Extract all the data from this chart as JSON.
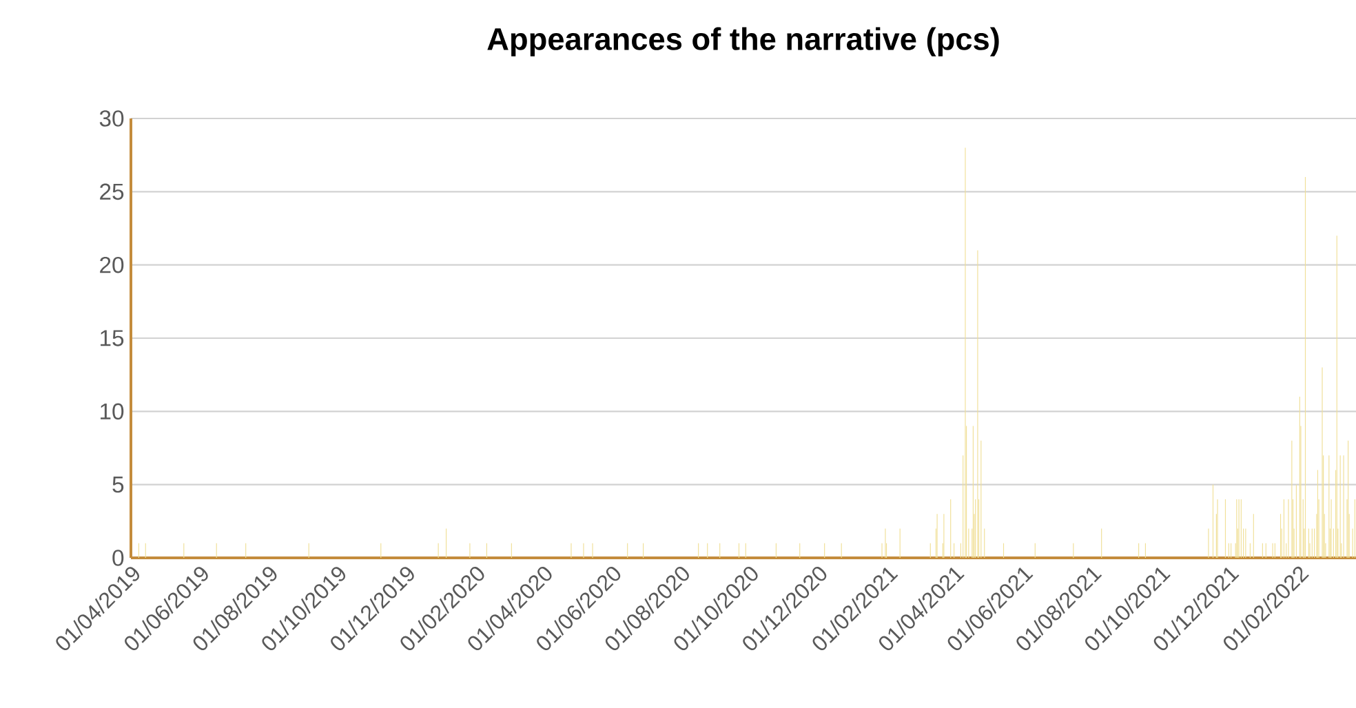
{
  "chart_data": {
    "type": "bar",
    "title": "Appearances of the narrative (pcs)",
    "x": [
      "2019-04-08",
      "2019-04-14",
      "2019-05-18",
      "2019-06-16",
      "2019-07-12",
      "2019-09-06",
      "2019-11-09",
      "2019-12-30",
      "2020-01-06",
      "2020-01-27",
      "2020-02-11",
      "2020-03-04",
      "2020-04-26",
      "2020-05-07",
      "2020-05-15",
      "2020-06-15",
      "2020-06-29",
      "2020-08-17",
      "2020-08-25",
      "2020-09-05",
      "2020-09-22",
      "2020-09-28",
      "2020-10-25",
      "2020-11-15",
      "2020-12-07",
      "2020-12-22",
      "2021-01-27",
      "2021-01-30",
      "2021-01-31",
      "2021-02-12",
      "2021-03-11",
      "2021-03-16",
      "2021-03-17",
      "2021-03-22",
      "2021-03-23",
      "2021-03-29",
      "2021-04-01",
      "2021-04-07",
      "2021-04-09",
      "2021-04-11",
      "2021-04-12",
      "2021-04-14",
      "2021-04-17",
      "2021-04-18",
      "2021-04-19",
      "2021-04-20",
      "2021-04-22",
      "2021-04-23",
      "2021-04-25",
      "2021-04-28",
      "2021-05-15",
      "2021-06-12",
      "2021-07-16",
      "2021-08-10",
      "2021-09-12",
      "2021-09-18",
      "2021-11-13",
      "2021-11-17",
      "2021-11-20",
      "2021-11-21",
      "2021-11-28",
      "2021-12-01",
      "2021-12-03",
      "2021-12-07",
      "2021-12-08",
      "2021-12-09",
      "2021-12-10",
      "2021-12-12",
      "2021-12-14",
      "2021-12-16",
      "2021-12-20",
      "2021-12-23",
      "2021-12-31",
      "2022-01-03",
      "2022-01-09",
      "2022-01-11",
      "2022-01-16",
      "2022-01-17",
      "2022-01-19",
      "2022-01-21",
      "2022-01-23",
      "2022-01-26",
      "2022-01-27",
      "2022-01-28",
      "2022-01-30",
      "2022-02-02",
      "2022-02-03",
      "2022-02-05",
      "2022-02-06",
      "2022-02-07",
      "2022-02-10",
      "2022-02-11",
      "2022-02-13",
      "2022-02-15",
      "2022-02-17",
      "2022-02-18",
      "2022-02-19",
      "2022-02-22",
      "2022-02-23",
      "2022-02-24",
      "2022-02-25",
      "2022-02-28",
      "2022-03-01",
      "2022-03-02",
      "2022-03-04",
      "2022-03-06",
      "2022-03-07",
      "2022-03-08",
      "2022-03-10",
      "2022-03-11",
      "2022-03-13",
      "2022-03-16",
      "2022-03-17",
      "2022-03-18",
      "2022-03-21",
      "2022-03-23"
    ],
    "values": [
      1,
      1,
      1,
      1,
      1,
      1,
      1,
      1,
      2,
      1,
      1,
      1,
      1,
      1,
      1,
      1,
      1,
      1,
      1,
      1,
      1,
      1,
      1,
      1,
      1,
      1,
      1,
      2,
      1,
      2,
      1,
      2,
      3,
      1,
      3,
      4,
      1,
      1,
      7,
      28,
      9,
      2,
      2,
      9,
      3,
      4,
      21,
      4,
      8,
      2,
      1,
      1,
      1,
      2,
      1,
      1,
      2,
      5,
      3,
      4,
      4,
      1,
      1,
      1,
      4,
      2,
      4,
      4,
      2,
      2,
      1,
      3,
      1,
      1,
      1,
      1,
      3,
      2,
      4,
      1,
      4,
      8,
      4,
      2,
      5,
      11,
      9,
      4,
      2,
      26,
      2,
      1,
      2,
      2,
      3,
      6,
      4,
      13,
      7,
      3,
      1,
      7,
      2,
      4,
      2,
      6,
      22,
      2,
      7,
      1,
      7,
      4,
      8,
      3,
      2,
      4
    ],
    "color": "#f0df96",
    "xlim": [
      "2019-04-01",
      "2022-03-24"
    ],
    "xticks": [
      {
        "value": "2019-04-01",
        "label": "01/04/2019"
      },
      {
        "value": "2019-06-01",
        "label": "01/06/2019"
      },
      {
        "value": "2019-08-01",
        "label": "01/08/2019"
      },
      {
        "value": "2019-10-01",
        "label": "01/10/2019"
      },
      {
        "value": "2019-12-01",
        "label": "01/12/2019"
      },
      {
        "value": "2020-02-01",
        "label": "01/02/2020"
      },
      {
        "value": "2020-04-01",
        "label": "01/04/2020"
      },
      {
        "value": "2020-06-01",
        "label": "01/06/2020"
      },
      {
        "value": "2020-08-01",
        "label": "01/08/2020"
      },
      {
        "value": "2020-10-01",
        "label": "01/10/2020"
      },
      {
        "value": "2020-12-01",
        "label": "01/12/2020"
      },
      {
        "value": "2021-02-01",
        "label": "01/02/2021"
      },
      {
        "value": "2021-04-01",
        "label": "01/04/2021"
      },
      {
        "value": "2021-06-01",
        "label": "01/06/2021"
      },
      {
        "value": "2021-08-01",
        "label": "01/08/2021"
      },
      {
        "value": "2021-10-01",
        "label": "01/10/2021"
      },
      {
        "value": "2021-12-01",
        "label": "01/12/2021"
      },
      {
        "value": "2022-02-01",
        "label": "01/02/2022"
      }
    ],
    "ylim": [
      0,
      30
    ],
    "yticks": [
      0,
      5,
      10,
      15,
      20,
      25,
      30
    ],
    "grid": "y"
  }
}
